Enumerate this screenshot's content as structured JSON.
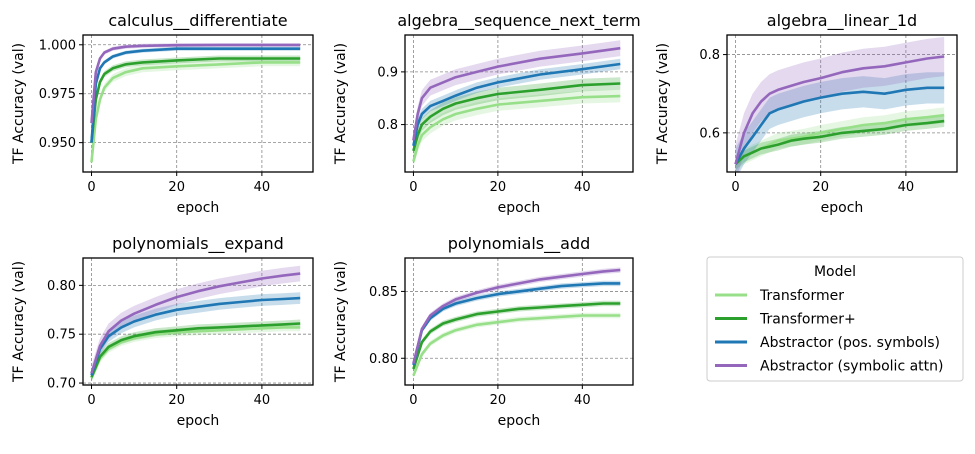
{
  "colors": {
    "Transformer": "#98df8a",
    "Transformer+": "#2ca02c",
    "Abstractor (pos. symbols)": "#1f77b4",
    "Abstractor (symbolic attn)": "#9467bd"
  },
  "legend": {
    "title": "Model",
    "entries": [
      "Transformer",
      "Transformer+",
      "Abstractor (pos. symbols)",
      "Abstractor (symbolic attn)"
    ]
  },
  "chart_data": [
    {
      "type": "line",
      "title": "calculus__differentiate",
      "xlabel": "epoch",
      "ylabel": "TF Accuracy (val)",
      "xlim": [
        -2,
        52
      ],
      "ylim": [
        0.935,
        1.005
      ],
      "xticks": [
        0,
        20,
        40
      ],
      "yticks": [
        0.95,
        0.975,
        1.0
      ],
      "ytick_labels": [
        "0.950",
        "0.975",
        "1.000"
      ],
      "grid": true,
      "x": [
        0,
        1,
        2,
        3,
        5,
        8,
        12,
        20,
        30,
        40,
        49
      ],
      "series": [
        {
          "name": "Transformer",
          "values": [
            0.94,
            0.962,
            0.972,
            0.978,
            0.983,
            0.986,
            0.988,
            0.989,
            0.99,
            0.991,
            0.991
          ],
          "band": 0.002
        },
        {
          "name": "Transformer+",
          "values": [
            0.95,
            0.972,
            0.981,
            0.985,
            0.988,
            0.99,
            0.991,
            0.992,
            0.993,
            0.993,
            0.993
          ],
          "band": 0.0015
        },
        {
          "name": "Abstractor (pos. symbols)",
          "values": [
            0.95,
            0.98,
            0.988,
            0.991,
            0.994,
            0.996,
            0.997,
            0.998,
            0.998,
            0.998,
            0.998
          ],
          "band": 0.001
        },
        {
          "name": "Abstractor (symbolic attn)",
          "values": [
            0.96,
            0.986,
            0.993,
            0.996,
            0.998,
            0.999,
            0.9995,
            0.9998,
            0.9999,
            0.9999,
            0.9999
          ],
          "band": 0.001
        }
      ]
    },
    {
      "type": "line",
      "title": "algebra__sequence_next_term",
      "xlabel": "epoch",
      "ylabel": "TF Accuracy (val)",
      "xlim": [
        -2,
        52
      ],
      "ylim": [
        0.71,
        0.97
      ],
      "xticks": [
        0,
        20,
        40
      ],
      "yticks": [
        0.8,
        0.9
      ],
      "ytick_labels": [
        "0.8",
        "0.9"
      ],
      "grid": true,
      "x": [
        0,
        1,
        2,
        4,
        7,
        10,
        15,
        20,
        30,
        40,
        49
      ],
      "series": [
        {
          "name": "Transformer",
          "values": [
            0.73,
            0.76,
            0.78,
            0.795,
            0.81,
            0.82,
            0.83,
            0.838,
            0.845,
            0.852,
            0.854
          ],
          "band": 0.012
        },
        {
          "name": "Transformer+",
          "values": [
            0.75,
            0.78,
            0.8,
            0.815,
            0.83,
            0.84,
            0.85,
            0.858,
            0.866,
            0.875,
            0.878
          ],
          "band": 0.012
        },
        {
          "name": "Abstractor (pos. symbols)",
          "values": [
            0.76,
            0.8,
            0.82,
            0.835,
            0.845,
            0.855,
            0.87,
            0.88,
            0.895,
            0.905,
            0.915
          ],
          "band": 0.01
        },
        {
          "name": "Abstractor (symbolic attn)",
          "values": [
            0.77,
            0.82,
            0.85,
            0.87,
            0.88,
            0.89,
            0.9,
            0.91,
            0.925,
            0.935,
            0.945
          ],
          "band": 0.015
        }
      ]
    },
    {
      "type": "line",
      "title": "algebra__linear_1d",
      "xlabel": "epoch",
      "ylabel": "TF Accuracy (val)",
      "xlim": [
        -2,
        52
      ],
      "ylim": [
        0.5,
        0.85
      ],
      "xticks": [
        0,
        20,
        40
      ],
      "yticks": [
        0.6,
        0.8
      ],
      "ytick_labels": [
        "0.6",
        "0.8"
      ],
      "grid": true,
      "x": [
        0,
        2,
        4,
        6,
        8,
        10,
        13,
        16,
        20,
        25,
        30,
        35,
        40,
        45,
        49
      ],
      "series": [
        {
          "name": "Transformer",
          "values": [
            0.52,
            0.54,
            0.55,
            0.56,
            0.57,
            0.58,
            0.585,
            0.59,
            0.6,
            0.61,
            0.62,
            0.625,
            0.635,
            0.64,
            0.645
          ],
          "band": 0.02
        },
        {
          "name": "Transformer+",
          "values": [
            0.52,
            0.54,
            0.55,
            0.56,
            0.565,
            0.57,
            0.58,
            0.585,
            0.59,
            0.6,
            0.605,
            0.61,
            0.62,
            0.625,
            0.63
          ],
          "band": 0.015
        },
        {
          "name": "Abstractor (pos. symbols)",
          "values": [
            0.52,
            0.56,
            0.59,
            0.62,
            0.65,
            0.66,
            0.67,
            0.68,
            0.69,
            0.7,
            0.705,
            0.7,
            0.71,
            0.715,
            0.715
          ],
          "band": 0.04
        },
        {
          "name": "Abstractor (symbolic attn)",
          "values": [
            0.52,
            0.6,
            0.65,
            0.68,
            0.7,
            0.71,
            0.72,
            0.73,
            0.74,
            0.755,
            0.765,
            0.77,
            0.78,
            0.79,
            0.795
          ],
          "band": 0.05
        }
      ]
    },
    {
      "type": "line",
      "title": "polynomials__expand",
      "xlabel": "epoch",
      "ylabel": "TF Accuracy (val)",
      "xlim": [
        -2,
        52
      ],
      "ylim": [
        0.698,
        0.828
      ],
      "xticks": [
        0,
        20,
        40
      ],
      "yticks": [
        0.7,
        0.75,
        0.8
      ],
      "ytick_labels": [
        "0.70",
        "0.75",
        "0.80"
      ],
      "grid": true,
      "x": [
        0,
        2,
        4,
        7,
        10,
        15,
        20,
        25,
        30,
        35,
        40,
        45,
        49
      ],
      "series": [
        {
          "name": "Transformer",
          "values": [
            0.705,
            0.725,
            0.735,
            0.742,
            0.746,
            0.75,
            0.752,
            0.753,
            0.754,
            0.755,
            0.756,
            0.757,
            0.757
          ],
          "band": 0.004
        },
        {
          "name": "Transformer+",
          "values": [
            0.706,
            0.727,
            0.737,
            0.744,
            0.748,
            0.752,
            0.754,
            0.756,
            0.757,
            0.758,
            0.759,
            0.76,
            0.761
          ],
          "band": 0.004
        },
        {
          "name": "Abstractor (pos. symbols)",
          "values": [
            0.708,
            0.735,
            0.748,
            0.757,
            0.763,
            0.77,
            0.775,
            0.778,
            0.781,
            0.783,
            0.785,
            0.786,
            0.787
          ],
          "band": 0.006
        },
        {
          "name": "Abstractor (symbolic attn)",
          "values": [
            0.71,
            0.738,
            0.753,
            0.764,
            0.771,
            0.78,
            0.788,
            0.794,
            0.799,
            0.803,
            0.807,
            0.81,
            0.812
          ],
          "band": 0.008
        }
      ]
    },
    {
      "type": "line",
      "title": "polynomials__add",
      "xlabel": "epoch",
      "ylabel": "TF Accuracy (val)",
      "xlim": [
        -2,
        52
      ],
      "ylim": [
        0.78,
        0.875
      ],
      "xticks": [
        0,
        20,
        40
      ],
      "yticks": [
        0.8,
        0.85
      ],
      "ytick_labels": [
        "0.80",
        "0.85"
      ],
      "grid": true,
      "x": [
        0,
        2,
        4,
        7,
        10,
        15,
        20,
        25,
        30,
        35,
        40,
        45,
        49
      ],
      "series": [
        {
          "name": "Transformer",
          "values": [
            0.787,
            0.803,
            0.811,
            0.817,
            0.821,
            0.825,
            0.827,
            0.829,
            0.83,
            0.831,
            0.832,
            0.832,
            0.832
          ],
          "band": 0.002
        },
        {
          "name": "Transformer+",
          "values": [
            0.792,
            0.812,
            0.82,
            0.826,
            0.829,
            0.833,
            0.835,
            0.837,
            0.838,
            0.839,
            0.84,
            0.841,
            0.841
          ],
          "band": 0.002
        },
        {
          "name": "Abstractor (pos. symbols)",
          "values": [
            0.795,
            0.821,
            0.83,
            0.837,
            0.841,
            0.845,
            0.848,
            0.85,
            0.852,
            0.854,
            0.855,
            0.856,
            0.856
          ],
          "band": 0.002
        },
        {
          "name": "Abstractor (symbolic attn)",
          "values": [
            0.796,
            0.822,
            0.832,
            0.839,
            0.844,
            0.849,
            0.853,
            0.856,
            0.859,
            0.861,
            0.863,
            0.865,
            0.866
          ],
          "band": 0.002
        }
      ]
    }
  ]
}
